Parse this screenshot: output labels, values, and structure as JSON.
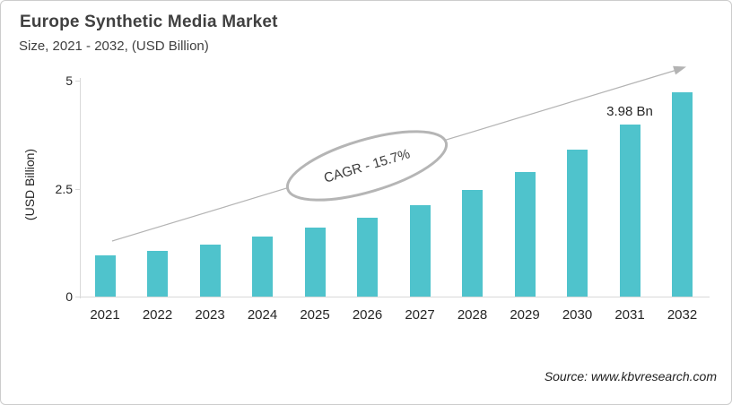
{
  "header": {
    "title": "Europe Synthetic Media Market",
    "subtitle": "Size, 2021 - 2032, (USD Billion)"
  },
  "footer": {
    "source": "Source: www.kbvresearch.com"
  },
  "chart_data": {
    "type": "bar",
    "title": "Europe Synthetic Media Market",
    "subtitle": "Size, 2021 - 2032, (USD Billion)",
    "categories": [
      "2021",
      "2022",
      "2023",
      "2024",
      "2025",
      "2026",
      "2027",
      "2028",
      "2029",
      "2030",
      "2031",
      "2032"
    ],
    "values": [
      0.95,
      1.06,
      1.2,
      1.39,
      1.6,
      1.83,
      2.12,
      2.47,
      2.88,
      3.4,
      3.98,
      4.72
    ],
    "xlabel": "",
    "ylabel": "(USD Billion)",
    "yticks": [
      0,
      2.5,
      5
    ],
    "ylim": [
      0,
      5
    ],
    "grid": false,
    "legend": false,
    "bar_color": "#4fc3cc",
    "axis_color": "#d9d9d9",
    "arrow_color": "#b3b3b3",
    "ellipse_stroke_color": "#b5b5b5",
    "annotations": {
      "cagr": "CAGR - 15.7%",
      "data_labels": [
        {
          "category": "2031",
          "text": "3.98 Bn"
        }
      ]
    }
  }
}
